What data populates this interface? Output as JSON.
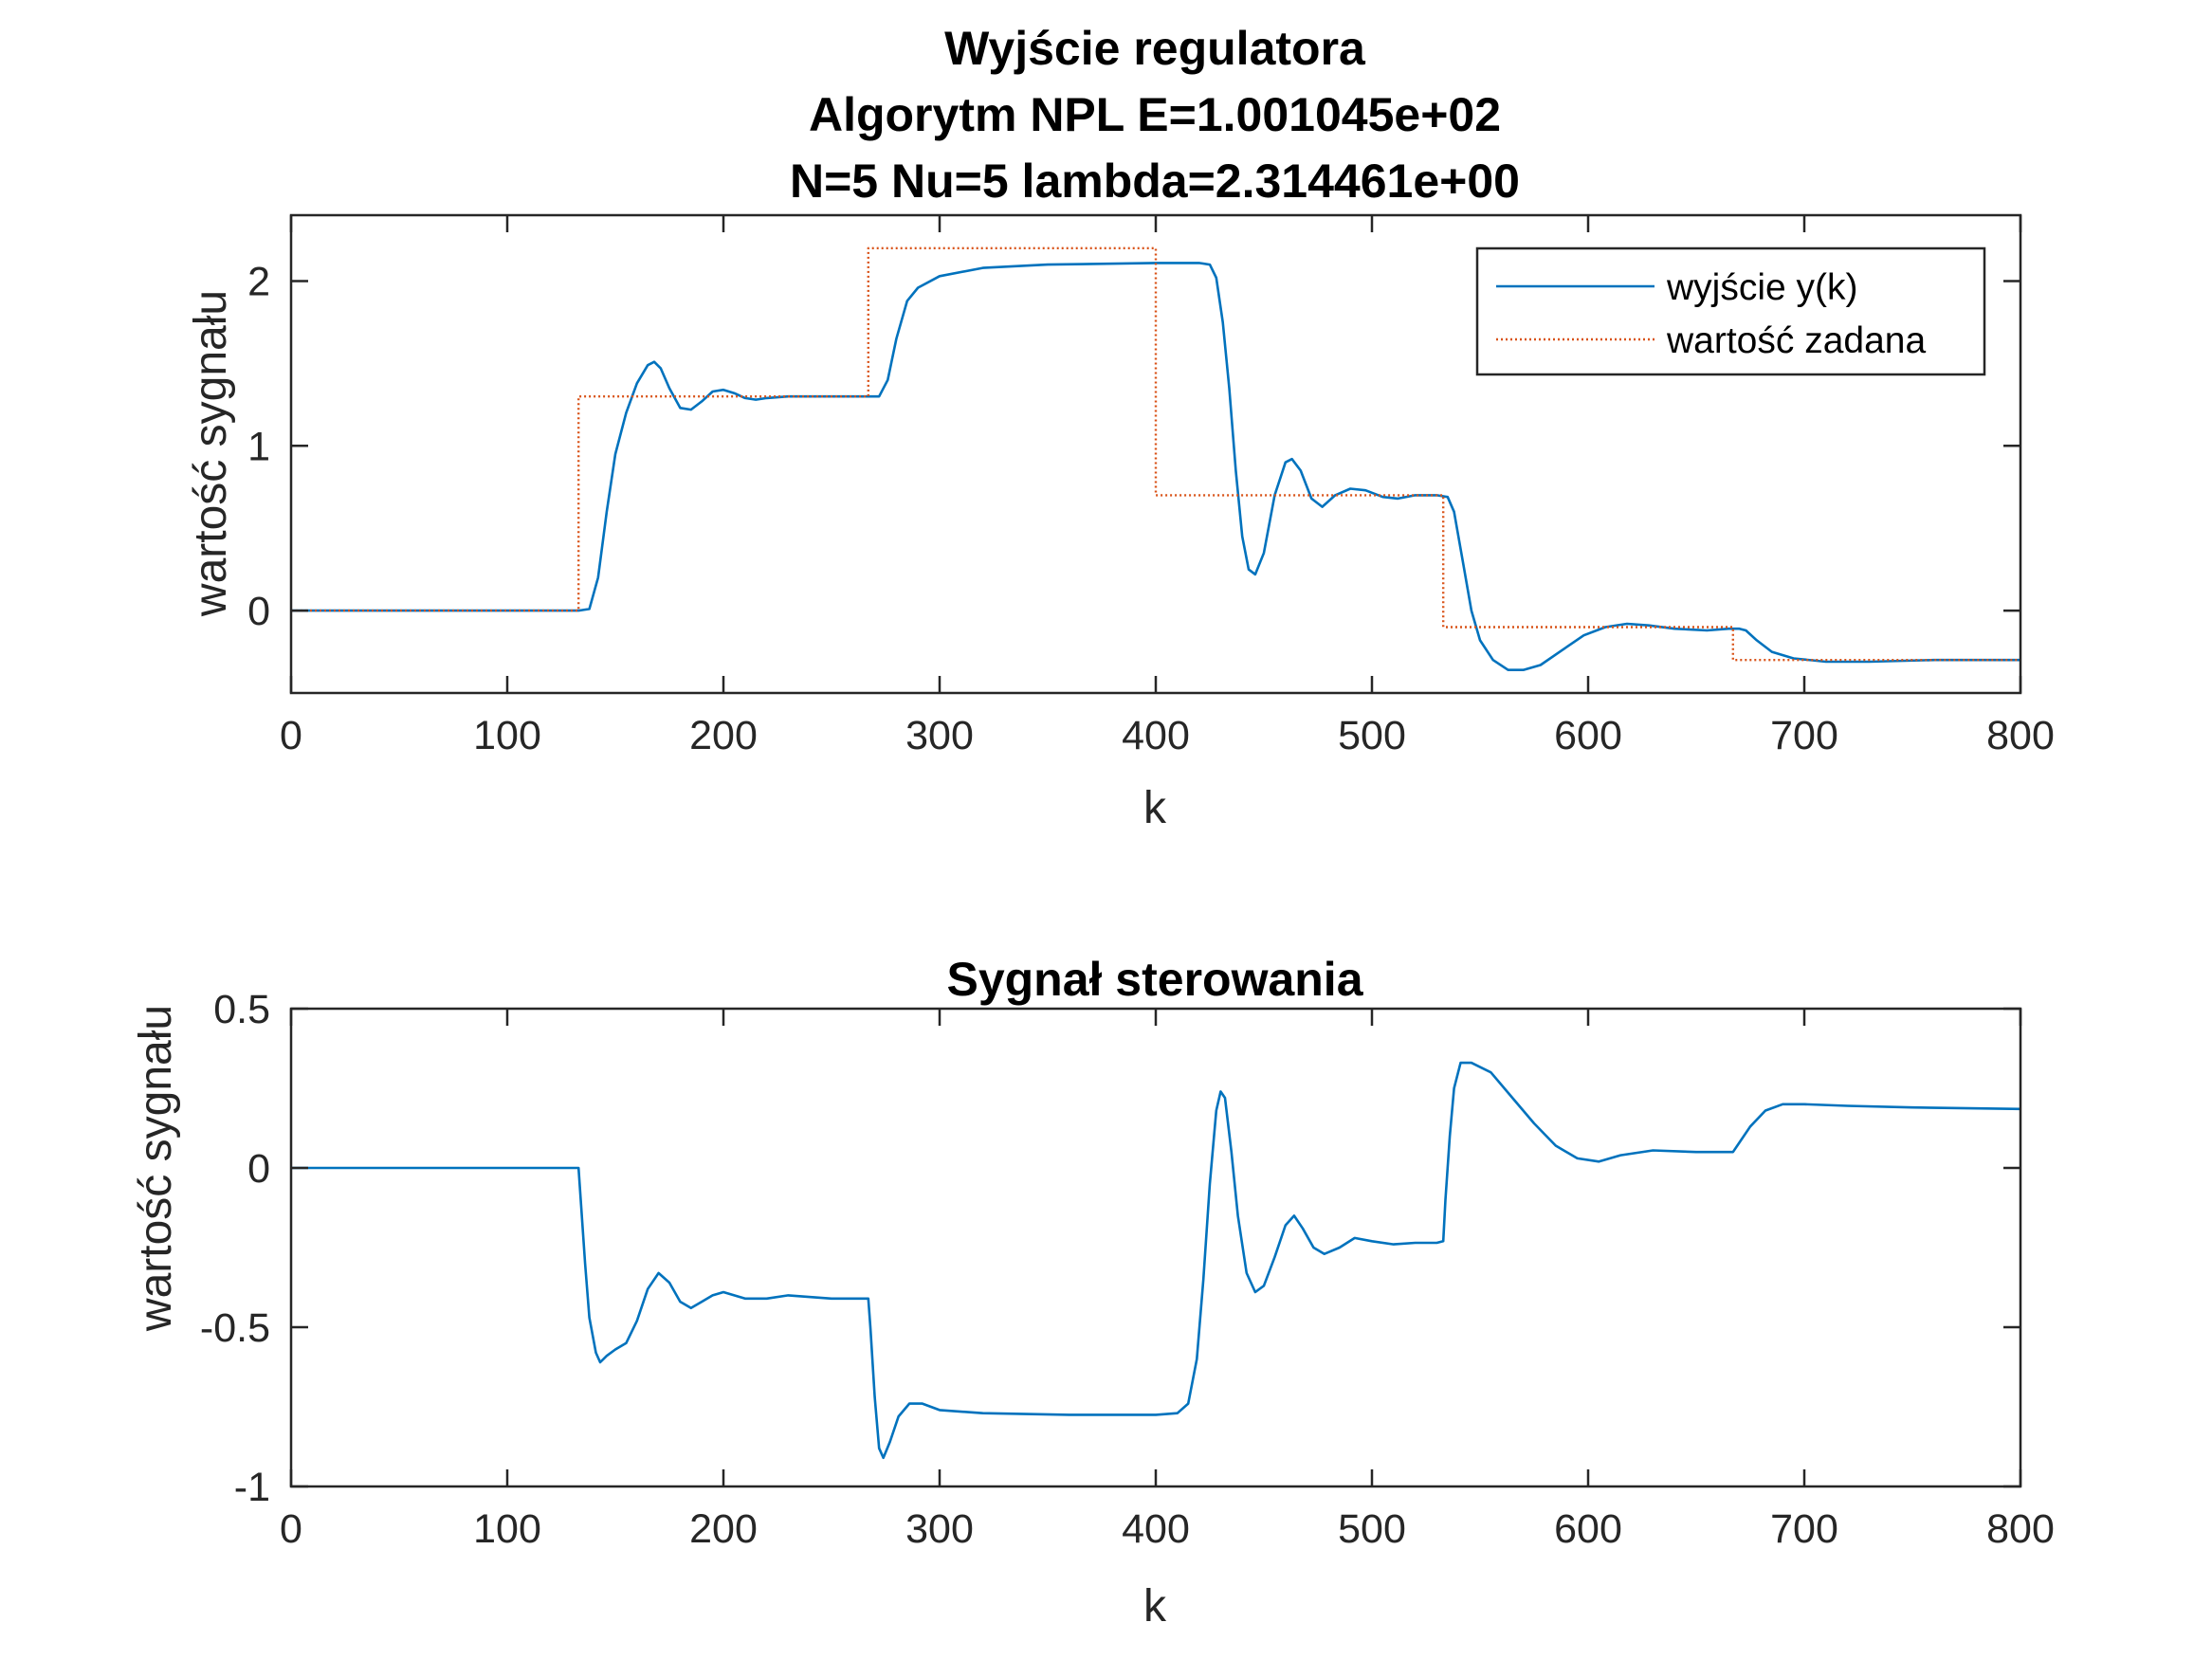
{
  "chart_data": [
    {
      "type": "line",
      "title_lines": [
        "Wyjście regulatora",
        "Algorytm NPL    E=1.001045e+02",
        "N=5  Nu=5  lambda=2.314461e+00"
      ],
      "xlabel": "k",
      "ylabel": "wartość sygnału",
      "xlim": [
        0,
        800
      ],
      "ylim": [
        -0.5,
        2.4
      ],
      "xticks": [
        0,
        100,
        200,
        300,
        400,
        500,
        600,
        700,
        800
      ],
      "xtick_labels": [
        "0",
        "100",
        "200",
        "300",
        "400",
        "500",
        "600",
        "700",
        "800"
      ],
      "yticks": [
        0,
        1,
        2
      ],
      "ytick_labels": [
        "0",
        "1",
        "2"
      ],
      "grid": false,
      "legend_position": "top-right",
      "series": [
        {
          "name": "wyjście y(k)",
          "color": "#0072BD",
          "style": "solid",
          "points": [
            [
              0,
              0
            ],
            [
              133,
              0
            ],
            [
              138,
              0.01
            ],
            [
              142,
              0.2
            ],
            [
              146,
              0.6
            ],
            [
              150,
              0.95
            ],
            [
              155,
              1.2
            ],
            [
              160,
              1.38
            ],
            [
              165,
              1.49
            ],
            [
              168,
              1.51
            ],
            [
              171,
              1.47
            ],
            [
              175,
              1.35
            ],
            [
              180,
              1.23
            ],
            [
              185,
              1.22
            ],
            [
              190,
              1.27
            ],
            [
              195,
              1.33
            ],
            [
              200,
              1.34
            ],
            [
              205,
              1.32
            ],
            [
              210,
              1.29
            ],
            [
              215,
              1.28
            ],
            [
              220,
              1.29
            ],
            [
              230,
              1.3
            ],
            [
              250,
              1.3
            ],
            [
              267,
              1.3
            ],
            [
              272,
              1.3
            ],
            [
              276,
              1.4
            ],
            [
              280,
              1.65
            ],
            [
              285,
              1.88
            ],
            [
              290,
              1.96
            ],
            [
              300,
              2.03
            ],
            [
              320,
              2.08
            ],
            [
              350,
              2.1
            ],
            [
              400,
              2.11
            ],
            [
              420,
              2.11
            ],
            [
              425,
              2.1
            ],
            [
              428,
              2.02
            ],
            [
              431,
              1.75
            ],
            [
              434,
              1.35
            ],
            [
              437,
              0.85
            ],
            [
              440,
              0.45
            ],
            [
              443,
              0.25
            ],
            [
              446,
              0.22
            ],
            [
              450,
              0.35
            ],
            [
              455,
              0.7
            ],
            [
              460,
              0.9
            ],
            [
              463,
              0.92
            ],
            [
              467,
              0.85
            ],
            [
              472,
              0.68
            ],
            [
              477,
              0.63
            ],
            [
              483,
              0.7
            ],
            [
              490,
              0.74
            ],
            [
              497,
              0.73
            ],
            [
              505,
              0.69
            ],
            [
              512,
              0.68
            ],
            [
              520,
              0.7
            ],
            [
              530,
              0.7
            ],
            [
              535,
              0.69
            ],
            [
              538,
              0.6
            ],
            [
              542,
              0.3
            ],
            [
              546,
              0.0
            ],
            [
              550,
              -0.18
            ],
            [
              556,
              -0.3
            ],
            [
              563,
              -0.36
            ],
            [
              570,
              -0.36
            ],
            [
              578,
              -0.33
            ],
            [
              588,
              -0.24
            ],
            [
              598,
              -0.15
            ],
            [
              608,
              -0.1
            ],
            [
              618,
              -0.08
            ],
            [
              628,
              -0.09
            ],
            [
              640,
              -0.11
            ],
            [
              655,
              -0.12
            ],
            [
              665,
              -0.11
            ],
            [
              670,
              -0.11
            ],
            [
              673,
              -0.12
            ],
            [
              678,
              -0.18
            ],
            [
              685,
              -0.25
            ],
            [
              695,
              -0.29
            ],
            [
              710,
              -0.31
            ],
            [
              730,
              -0.31
            ],
            [
              760,
              -0.3
            ],
            [
              800,
              -0.3
            ]
          ]
        },
        {
          "name": "wartość zadana",
          "color": "#D95319",
          "style": "dotted",
          "points": [
            [
              0,
              0
            ],
            [
              133,
              0
            ],
            [
              133,
              1.3
            ],
            [
              267,
              1.3
            ],
            [
              267,
              2.2
            ],
            [
              400,
              2.2
            ],
            [
              400,
              0.7
            ],
            [
              533,
              0.7
            ],
            [
              533,
              -0.1
            ],
            [
              667,
              -0.1
            ],
            [
              667,
              -0.3
            ],
            [
              800,
              -0.3
            ]
          ]
        }
      ]
    },
    {
      "type": "line",
      "title_lines": [
        "Sygnał sterowania"
      ],
      "xlabel": "k",
      "ylabel": "wartość sygnału",
      "xlim": [
        0,
        800
      ],
      "ylim": [
        -1,
        0.5
      ],
      "xticks": [
        0,
        100,
        200,
        300,
        400,
        500,
        600,
        700,
        800
      ],
      "xtick_labels": [
        "0",
        "100",
        "200",
        "300",
        "400",
        "500",
        "600",
        "700",
        "800"
      ],
      "yticks": [
        -1,
        -0.5,
        0,
        0.5
      ],
      "ytick_labels": [
        "-1",
        "-0.5",
        "0",
        "0.5"
      ],
      "grid": false,
      "series": [
        {
          "color": "#0072BD",
          "style": "solid",
          "points": [
            [
              0,
              0
            ],
            [
              133,
              0
            ],
            [
              134,
              -0.1
            ],
            [
              136,
              -0.3
            ],
            [
              138,
              -0.47
            ],
            [
              141,
              -0.58
            ],
            [
              143,
              -0.61
            ],
            [
              146,
              -0.59
            ],
            [
              150,
              -0.57
            ],
            [
              155,
              -0.55
            ],
            [
              160,
              -0.48
            ],
            [
              165,
              -0.38
            ],
            [
              170,
              -0.33
            ],
            [
              175,
              -0.36
            ],
            [
              180,
              -0.42
            ],
            [
              185,
              -0.44
            ],
            [
              190,
              -0.42
            ],
            [
              195,
              -0.4
            ],
            [
              200,
              -0.39
            ],
            [
              210,
              -0.41
            ],
            [
              220,
              -0.41
            ],
            [
              230,
              -0.4
            ],
            [
              250,
              -0.41
            ],
            [
              267,
              -0.41
            ],
            [
              268,
              -0.5
            ],
            [
              270,
              -0.72
            ],
            [
              272,
              -0.88
            ],
            [
              274,
              -0.91
            ],
            [
              277,
              -0.86
            ],
            [
              281,
              -0.78
            ],
            [
              286,
              -0.74
            ],
            [
              292,
              -0.74
            ],
            [
              300,
              -0.76
            ],
            [
              320,
              -0.77
            ],
            [
              360,
              -0.775
            ],
            [
              400,
              -0.775
            ],
            [
              410,
              -0.77
            ],
            [
              415,
              -0.74
            ],
            [
              419,
              -0.6
            ],
            [
              422,
              -0.35
            ],
            [
              425,
              -0.05
            ],
            [
              428,
              0.18
            ],
            [
              430,
              0.24
            ],
            [
              432,
              0.22
            ],
            [
              435,
              0.05
            ],
            [
              438,
              -0.15
            ],
            [
              442,
              -0.33
            ],
            [
              446,
              -0.39
            ],
            [
              450,
              -0.37
            ],
            [
              455,
              -0.28
            ],
            [
              460,
              -0.18
            ],
            [
              464,
              -0.15
            ],
            [
              468,
              -0.19
            ],
            [
              473,
              -0.25
            ],
            [
              478,
              -0.27
            ],
            [
              485,
              -0.25
            ],
            [
              492,
              -0.22
            ],
            [
              500,
              -0.23
            ],
            [
              510,
              -0.24
            ],
            [
              520,
              -0.235
            ],
            [
              530,
              -0.235
            ],
            [
              533,
              -0.23
            ],
            [
              534,
              -0.1
            ],
            [
              536,
              0.1
            ],
            [
              538,
              0.25
            ],
            [
              541,
              0.33
            ],
            [
              546,
              0.33
            ],
            [
              555,
              0.3
            ],
            [
              565,
              0.22
            ],
            [
              575,
              0.14
            ],
            [
              585,
              0.07
            ],
            [
              595,
              0.03
            ],
            [
              605,
              0.02
            ],
            [
              615,
              0.04
            ],
            [
              630,
              0.055
            ],
            [
              650,
              0.05
            ],
            [
              667,
              0.05
            ],
            [
              670,
              0.08
            ],
            [
              675,
              0.13
            ],
            [
              682,
              0.18
            ],
            [
              690,
              0.2
            ],
            [
              700,
              0.2
            ],
            [
              720,
              0.195
            ],
            [
              750,
              0.19
            ],
            [
              800,
              0.185
            ]
          ]
        }
      ]
    }
  ]
}
